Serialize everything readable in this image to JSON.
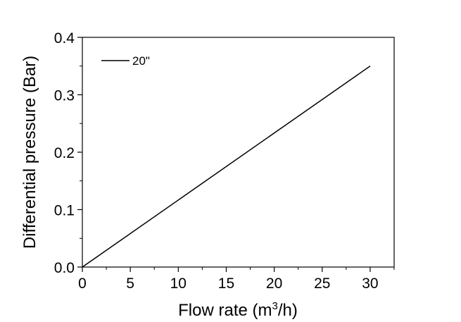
{
  "chart_data": {
    "type": "line",
    "xlabel_main": "Flow rate (m",
    "xlabel_sup": "3",
    "xlabel_tail": "/h)",
    "ylabel": "Differential pressure (Bar)",
    "xlim": [
      0,
      32.5
    ],
    "ylim": [
      0,
      0.4
    ],
    "x_ticks": [
      0,
      5,
      10,
      15,
      20,
      25,
      30
    ],
    "x_tick_labels": [
      "0",
      "5",
      "10",
      "15",
      "20",
      "25",
      "30"
    ],
    "y_ticks": [
      0,
      0.1,
      0.2,
      0.3,
      0.4
    ],
    "y_tick_labels": [
      "0.0",
      "0.1",
      "0.2",
      "0.3",
      "0.4"
    ],
    "x_minor_ticks": [
      2.5,
      7.5,
      12.5,
      17.5,
      22.5,
      27.5,
      32.5
    ],
    "y_minor_ticks": [
      0.05,
      0.15,
      0.25,
      0.35
    ],
    "grid": false,
    "legend_position": "top-left",
    "series": [
      {
        "name": "20\"",
        "color": "#000000",
        "x": [
          0,
          30
        ],
        "y": [
          0,
          0.35
        ]
      }
    ]
  }
}
